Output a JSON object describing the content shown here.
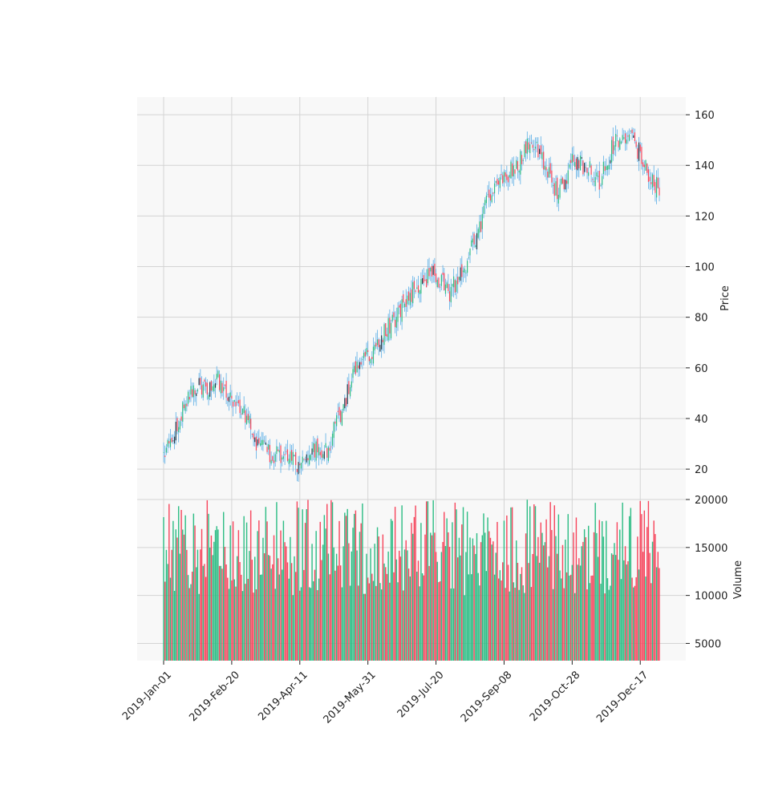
{
  "chart_data": [
    {
      "type": "candlestick",
      "panel": "price",
      "ylabel": "Price",
      "ylim": [
        8,
        167
      ],
      "yticks": [
        20,
        40,
        60,
        80,
        100,
        120,
        140,
        160
      ],
      "xticks": [
        "2019-Jan-01",
        "2019-Feb-20",
        "2019-Apr-11",
        "2019-May-31",
        "2019-Jul-20",
        "2019-Sep-08",
        "2019-Oct-28",
        "2019-Dec-17"
      ],
      "x_range": [
        "2019-Jan-01",
        "2019-Dec-31"
      ],
      "grid": true,
      "colors": {
        "up": "#2ebd85",
        "down": "#f6465d",
        "wick": "#5aaee6",
        "up_alt": "#1b3a4b"
      },
      "close_path": [
        [
          "2019-Jan-01",
          25
        ],
        [
          "2019-Jan-08",
          33
        ],
        [
          "2019-Jan-15",
          44
        ],
        [
          "2019-Jan-22",
          52
        ],
        [
          "2019-Feb-01",
          52
        ],
        [
          "2019-Feb-10",
          55
        ],
        [
          "2019-Feb-20",
          47
        ],
        [
          "2019-Mar-01",
          43
        ],
        [
          "2019-Mar-10",
          30
        ],
        [
          "2019-Mar-20",
          26
        ],
        [
          "2019-Mar-31",
          25
        ],
        [
          "2019-Apr-11",
          22
        ],
        [
          "2019-Apr-20",
          27
        ],
        [
          "2019-Apr-30",
          27
        ],
        [
          "2019-May-10",
          40
        ],
        [
          "2019-May-20",
          57
        ],
        [
          "2019-May-31",
          65
        ],
        [
          "2019-Jun-10",
          72
        ],
        [
          "2019-Jun-20",
          80
        ],
        [
          "2019-Jun-30",
          88
        ],
        [
          "2019-Jul-10",
          95
        ],
        [
          "2019-Jul-20",
          97
        ],
        [
          "2019-Jul-30",
          90
        ],
        [
          "2019-Aug-09",
          98
        ],
        [
          "2019-Aug-19",
          112
        ],
        [
          "2019-Aug-29",
          130
        ],
        [
          "2019-Sep-08",
          136
        ],
        [
          "2019-Sep-18",
          140
        ],
        [
          "2019-Sep-28",
          150
        ],
        [
          "2019-Oct-08",
          140
        ],
        [
          "2019-Oct-18",
          128
        ],
        [
          "2019-Oct-28",
          142
        ],
        [
          "2019-Nov-07",
          140
        ],
        [
          "2019-Nov-17",
          133
        ],
        [
          "2019-Nov-27",
          148
        ],
        [
          "2019-Dec-07",
          152
        ],
        [
          "2019-Dec-17",
          145
        ],
        [
          "2019-Dec-24",
          135
        ],
        [
          "2019-Dec-31",
          130
        ]
      ]
    },
    {
      "type": "bar",
      "panel": "volume",
      "ylabel": "Volume",
      "ylim": [
        3200,
        20000
      ],
      "yticks": [
        5000,
        10000,
        15000,
        20000
      ],
      "range": [
        10000,
        20000
      ],
      "grid": true,
      "colors": {
        "up": "#2ebd85",
        "down": "#f6465d"
      }
    }
  ]
}
